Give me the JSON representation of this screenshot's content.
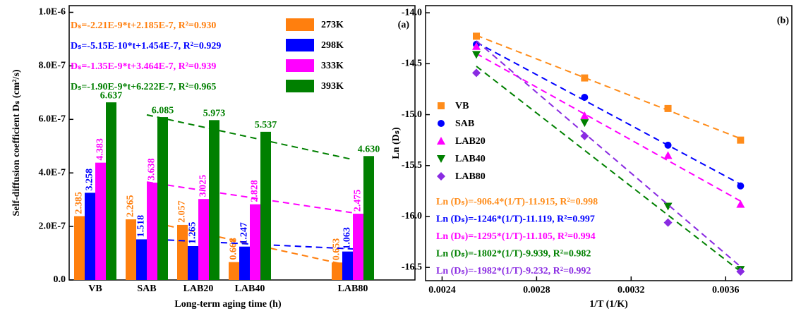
{
  "chart_data": [
    {
      "type": "bar",
      "panel_label": "(a)",
      "x_label": "Long-term aging time (h)",
      "y_label": "Self-diffusion coefficient Dₛ (cm²/s)",
      "categories": [
        "VB",
        "SAB",
        "LAB20",
        "LAB40",
        "LAB80"
      ],
      "ylim": [
        0,
        1.025e-06
      ],
      "yticks": [
        {
          "value": 0,
          "label": "0.0"
        },
        {
          "value": 2e-07,
          "label": "2.0E-7"
        },
        {
          "value": 4e-07,
          "label": "4.0E-7"
        },
        {
          "value": 6e-07,
          "label": "6.0E-7"
        },
        {
          "value": 8e-07,
          "label": "8.0E-7"
        },
        {
          "value": 1e-06,
          "label": "1.0E-6"
        }
      ],
      "series": [
        {
          "name": "273K",
          "color": "#ff7f0e",
          "values": [
            2.385e-07,
            2.265e-07,
            2.057e-07,
            6.68e-08,
            6.53e-08
          ],
          "value_labels": [
            "2.385",
            "2.265",
            "2.057",
            "0.668",
            "0.653"
          ],
          "equation": "Dₛ=-2.21E-9*t+2.185E-7, R²=0.930",
          "trend": [
            2.2e-07,
            5.1e-08
          ]
        },
        {
          "name": "298K",
          "color": "#0000ff",
          "values": [
            3.258e-07,
            1.518e-07,
            1.265e-07,
            1.247e-07,
            1.063e-07
          ],
          "value_labels": [
            "3.258",
            "1.518",
            "1.265",
            "1.247",
            "1.063"
          ],
          "equation": "Dₛ=-5.15E-10*t+1.454E-7, R²=0.929",
          "trend": [
            1.53e-07,
            1.16e-07
          ]
        },
        {
          "name": "333K",
          "color": "#ff00ff",
          "values": [
            4.383e-07,
            3.638e-07,
            3.025e-07,
            2.828e-07,
            2.475e-07
          ],
          "value_labels": [
            "4.383",
            "3.638",
            "3.025",
            "2.828",
            "2.475"
          ],
          "equation": "Dₛ=-1.35E-9*t+3.464E-7, R²=0.939",
          "trend": [
            3.66e-07,
            2.51e-07
          ]
        },
        {
          "name": "393K",
          "color": "#008000",
          "values": [
            6.637e-07,
            6.085e-07,
            5.973e-07,
            5.537e-07,
            4.63e-07
          ],
          "value_labels": [
            "6.637",
            "6.085",
            "5.973",
            "5.537",
            "4.630"
          ],
          "equation": "Dₛ=-1.90E-9*t+6.222E-7, R²=0.965",
          "trend": [
            6.17e-07,
            4.5e-07
          ]
        }
      ]
    },
    {
      "type": "scatter",
      "panel_label": "(b)",
      "x_label": "1/T (1/K)",
      "y_label": "Ln (Dₛ)",
      "x": [
        0.002545,
        0.003003,
        0.003356,
        0.003663
      ],
      "xlim": [
        0.00233,
        0.00388
      ],
      "ylim": [
        -16.63,
        -13.93
      ],
      "xticks": [
        0.0024,
        0.0028,
        0.0032,
        0.0036
      ],
      "yticks": [
        {
          "value": -14,
          "label": "-14.0"
        },
        -14.5,
        {
          "value": -15,
          "label": "-15.0"
        },
        -15.5,
        {
          "value": -16,
          "label": "-16.0"
        },
        -16.5
      ],
      "series": [
        {
          "name": "VB",
          "color": "#ff8c1a",
          "marker": "square",
          "values": [
            -14.23,
            -14.64,
            -14.94,
            -15.25
          ],
          "equation": "Ln (Dₛ)=-906.4*(1/T)-11.915, R²=0.998",
          "fit": {
            "slope": -906.4,
            "intercept": -11.915
          }
        },
        {
          "name": "SAB",
          "color": "#0000ff",
          "marker": "circle",
          "values": [
            -14.31,
            -14.83,
            -15.3,
            -15.7
          ],
          "equation": "Ln (Dₛ)=-1246*(1/T)-11.119, R²=0.997",
          "fit": {
            "slope": -1246,
            "intercept": -11.119
          }
        },
        {
          "name": "LAB20",
          "color": "#ff00ff",
          "marker": "triangle-up",
          "values": [
            -14.33,
            -15.01,
            -15.4,
            -15.88
          ],
          "equation": "Ln (Dₛ)=-1295*(1/T)-11.105, R²=0.994",
          "fit": {
            "slope": -1295,
            "intercept": -11.105
          }
        },
        {
          "name": "LAB40",
          "color": "#008000",
          "marker": "triangle-down",
          "values": [
            -14.41,
            -15.08,
            -15.9,
            -16.52
          ],
          "equation": "Ln (Dₛ)=-1802*(1/T)-9.939, R²=0.982",
          "fit": {
            "slope": -1802,
            "intercept": -9.939
          }
        },
        {
          "name": "LAB80",
          "color": "#8a2be2",
          "marker": "diamond",
          "values": [
            -14.59,
            -15.21,
            -16.06,
            -16.54
          ],
          "equation": "Ln (Dₛ)=-1982*(1/T)-9.232, R²=0.992",
          "fit": {
            "slope": -1982,
            "intercept": -9.232
          }
        }
      ]
    }
  ]
}
